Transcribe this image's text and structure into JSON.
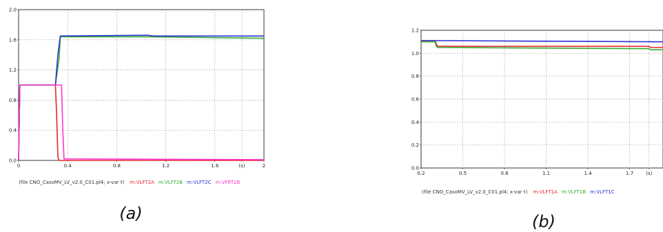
{
  "chart_data": [
    {
      "type": "line",
      "caption": "(a)",
      "xlim": [
        0,
        2
      ],
      "ylim": [
        0,
        2.0
      ],
      "xticks": [
        "0",
        "0.4",
        "0.8",
        "1.2",
        "1.6",
        "(s)",
        "2"
      ],
      "xtick_values": [
        0,
        0.4,
        0.8,
        1.2,
        1.6,
        1.82,
        2
      ],
      "yticks": [
        "0.0",
        "0.4",
        "0.8",
        "1.2",
        "1.6",
        "2.0"
      ],
      "ytick_values": [
        0,
        0.4,
        0.8,
        1.2,
        1.6,
        2.0
      ],
      "grid": true,
      "legend_prefix": "(file CNO_CasoMV_LV_v2.0_C01.pl4; x-var t)",
      "series": [
        {
          "name": "m:VLFT2A",
          "color": "#e8242a",
          "x": [
            0,
            0.01,
            0.3,
            0.31,
            0.32,
            0.33,
            2
          ],
          "y": [
            0,
            1.0,
            1.0,
            0.6,
            0.05,
            0,
            0
          ]
        },
        {
          "name": "m:VLFT2B",
          "color": "#2fae2f",
          "x": [
            0,
            0.01,
            0.3,
            0.33,
            0.34,
            1.05,
            2
          ],
          "y": [
            0,
            1.0,
            1.0,
            1.35,
            1.64,
            1.64,
            1.62
          ]
        },
        {
          "name": "m:VLFT2C",
          "color": "#2a2fd6",
          "x": [
            0,
            0.01,
            0.3,
            0.32,
            0.34,
            1.05,
            1.1,
            2
          ],
          "y": [
            0,
            1.0,
            1.0,
            1.4,
            1.65,
            1.66,
            1.65,
            1.65
          ]
        },
        {
          "name": "m:VFRT2B",
          "color": "#ff33cc",
          "x": [
            0,
            0.01,
            0.35,
            0.36,
            0.37,
            2
          ],
          "y": [
            0,
            1.0,
            1.0,
            0.4,
            0.02,
            0.01
          ]
        }
      ]
    },
    {
      "type": "line",
      "caption": "(b)",
      "xlim": [
        0.2,
        1.94
      ],
      "ylim": [
        0,
        1.2
      ],
      "xticks": [
        "0.2",
        "0.5",
        "0.8",
        "1.1",
        "1.4",
        "1.7",
        "(s)"
      ],
      "xtick_values": [
        0.2,
        0.5,
        0.8,
        1.1,
        1.4,
        1.7,
        1.84
      ],
      "yticks": [
        "0.0",
        "0.2",
        "0.4",
        "0.6",
        "0.8",
        "1.0",
        "1.2"
      ],
      "ytick_values": [
        0,
        0.2,
        0.4,
        0.6,
        0.8,
        1.0,
        1.2
      ],
      "grid": true,
      "legend_prefix": "(file CNO_CasoMV_LV_v2.0_C01.pl4; x-var t)",
      "series": [
        {
          "name": "m:VLFT1A",
          "color": "#e8242a",
          "x": [
            0.2,
            0.3,
            0.31,
            0.32,
            1.84,
            1.85,
            1.94
          ],
          "y": [
            1.11,
            1.11,
            1.08,
            1.06,
            1.06,
            1.05,
            1.05
          ]
        },
        {
          "name": "m:VLFT1B",
          "color": "#2fae2f",
          "x": [
            0.2,
            0.3,
            0.31,
            0.32,
            1.84,
            1.85,
            1.94
          ],
          "y": [
            1.1,
            1.1,
            1.06,
            1.05,
            1.04,
            1.03,
            1.03
          ]
        },
        {
          "name": "m:VLFT1C",
          "color": "#2a2fd6",
          "x": [
            0.2,
            0.3,
            0.31,
            1.94
          ],
          "y": [
            1.11,
            1.11,
            1.11,
            1.1
          ]
        }
      ]
    }
  ]
}
